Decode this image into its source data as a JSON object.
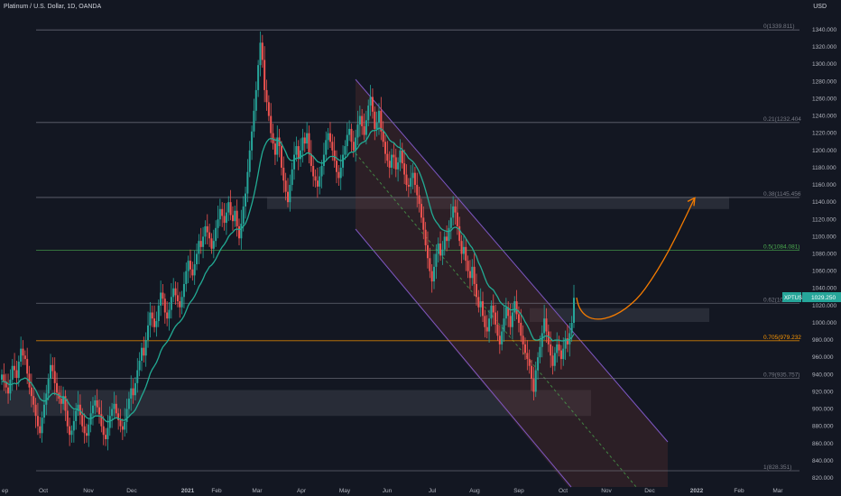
{
  "header": {
    "title": "Platinum / U.S. Dollar, 1D, OANDA"
  },
  "currency": {
    "label": "USD"
  },
  "chart_data": {
    "type": "candlestick",
    "symbol": "XPTUSD",
    "last_price": "1029.250",
    "ylim": [
      818,
      1355
    ],
    "y_ticks": [
      820,
      840,
      860,
      880,
      900,
      920,
      940,
      960,
      980,
      1000,
      1020,
      1040,
      1060,
      1080,
      1100,
      1120,
      1140,
      1160,
      1180,
      1200,
      1220,
      1240,
      1260,
      1280,
      1300,
      1320,
      1340
    ],
    "y_tick_labels": [
      "820.000",
      "840.000",
      "860.000",
      "880.000",
      "900.000",
      "920.000",
      "940.000",
      "960.000",
      "980.000",
      "1000.000",
      "1020.000",
      "1040.000",
      "1060.000",
      "1080.000",
      "1100.000",
      "1120.000",
      "1140.000",
      "1160.000",
      "1180.000",
      "1200.000",
      "1220.000",
      "1240.000",
      "1260.000",
      "1280.000",
      "1300.000",
      "1320.000",
      "1340.000"
    ],
    "x_labels": [
      "ep",
      "Oct",
      "Nov",
      "Dec",
      "2021",
      "Feb",
      "Mar",
      "Apr",
      "May",
      "Jun",
      "Jul",
      "Aug",
      "Sep",
      "Oct",
      "Nov",
      "Dec",
      "2022",
      "Feb",
      "Mar"
    ],
    "fib_levels": [
      {
        "label": "0(1339.811)",
        "value": 1339.811,
        "color": "#787b86"
      },
      {
        "label": "0.21(1232.404)",
        "value": 1232.404,
        "color": "#787b86"
      },
      {
        "label": "0.38(1145.456)",
        "value": 1145.456,
        "color": "#787b86"
      },
      {
        "label": "0.5(1084.081)",
        "value": 1084.081,
        "color": "#4caf50"
      },
      {
        "label": "0.62(10",
        "value": 1022.7,
        "color": "#787b86"
      },
      {
        "label": "0.705(979.232)",
        "value": 979.232,
        "color": "#ff9800"
      },
      {
        "label": "0.79(935.757)",
        "value": 935.757,
        "color": "#787b86"
      },
      {
        "label": "1(828.351)",
        "value": 828.351,
        "color": "#787b86"
      }
    ],
    "candles_close": [
      940,
      932,
      925,
      918,
      934,
      950,
      945,
      936,
      955,
      970,
      962,
      958,
      941,
      925,
      915,
      905,
      892,
      880,
      872,
      890,
      905,
      918,
      935,
      951,
      944,
      930,
      919,
      912,
      906,
      915,
      898,
      880,
      870,
      875,
      886,
      898,
      905,
      893,
      880,
      872,
      869,
      882,
      895,
      904,
      910,
      902,
      894,
      880,
      870,
      865,
      878,
      892,
      900,
      906,
      895,
      887,
      880,
      876,
      885,
      900,
      912,
      924,
      916,
      930,
      945,
      956,
      971,
      962,
      980,
      997,
      1012,
      1005,
      995,
      1002,
      1020,
      1035,
      1028,
      1012,
      1005,
      1015,
      1030,
      1040,
      1032,
      1025,
      1018,
      1030,
      1045,
      1060,
      1072,
      1062,
      1055,
      1068,
      1080,
      1095,
      1088,
      1100,
      1112,
      1105,
      1098,
      1086,
      1095,
      1110,
      1120,
      1132,
      1124,
      1116,
      1128,
      1140,
      1125,
      1118,
      1130,
      1112,
      1098,
      1115,
      1135,
      1150,
      1175,
      1200,
      1222,
      1246,
      1270,
      1299,
      1325,
      1305,
      1270,
      1256,
      1240,
      1220,
      1208,
      1195,
      1215,
      1205,
      1180,
      1165,
      1152,
      1140,
      1160,
      1178,
      1195,
      1205,
      1190,
      1200,
      1215,
      1208,
      1220,
      1196,
      1182,
      1170,
      1165,
      1158,
      1170,
      1182,
      1195,
      1212,
      1220,
      1210,
      1200,
      1188,
      1175,
      1168,
      1180,
      1195,
      1205,
      1218,
      1225,
      1210,
      1200,
      1215,
      1230,
      1240,
      1228,
      1218,
      1235,
      1252,
      1262,
      1245,
      1225,
      1232,
      1246,
      1222,
      1210,
      1196,
      1188,
      1180,
      1195,
      1192,
      1178,
      1186,
      1200,
      1185,
      1172,
      1160,
      1158,
      1168,
      1174,
      1160,
      1148,
      1138,
      1122,
      1108,
      1090,
      1075,
      1060,
      1048,
      1065,
      1080,
      1092,
      1078,
      1085,
      1100,
      1095,
      1110,
      1122,
      1135,
      1128,
      1112,
      1095,
      1080,
      1088,
      1072,
      1060,
      1052,
      1065,
      1045,
      1030,
      1018,
      1025,
      1008,
      995,
      990,
      1005,
      1020,
      1012,
      998,
      985,
      975,
      990,
      1005,
      1018,
      1008,
      995,
      1012,
      1025,
      1010,
      1000,
      985,
      975,
      965,
      958,
      950,
      935,
      920,
      945,
      960,
      972,
      988,
      1005,
      990,
      975,
      962,
      950,
      965,
      975,
      968,
      958,
      970,
      982,
      975,
      988,
      1000,
      1029
    ],
    "ema_values": [
      932,
      932,
      931,
      929,
      928,
      929,
      930,
      929,
      931,
      934,
      935,
      936,
      935,
      932,
      930,
      926,
      922,
      917,
      912,
      910,
      909,
      910,
      913,
      916,
      918,
      918,
      917,
      916,
      914,
      914,
      912,
      909,
      905,
      902,
      900,
      900,
      899,
      898,
      895,
      893,
      890,
      889,
      889,
      890,
      892,
      892,
      892,
      891,
      889,
      886,
      885,
      886,
      887,
      889,
      890,
      889,
      888,
      887,
      887,
      889,
      891,
      894,
      896,
      899,
      904,
      909,
      915,
      920,
      926,
      933,
      941,
      946,
      950,
      954,
      960,
      967,
      972,
      975,
      978,
      982,
      987,
      992,
      996,
      999,
      1001,
      1004,
      1008,
      1014,
      1020,
      1024,
      1027,
      1031,
      1036,
      1042,
      1046,
      1051,
      1057,
      1061,
      1065,
      1067,
      1070,
      1074,
      1079,
      1084,
      1088,
      1091,
      1095,
      1100,
      1103,
      1105,
      1108,
      1109,
      1108,
      1109,
      1112,
      1115,
      1121,
      1129,
      1138,
      1148,
      1160,
      1173,
      1187,
      1198,
      1205,
      1210,
      1213,
      1214,
      1213,
      1212,
      1212,
      1211,
      1208,
      1203,
      1198,
      1192,
      1189,
      1188,
      1189,
      1191,
      1191,
      1192,
      1194,
      1195,
      1197,
      1197,
      1195,
      1193,
      1190,
      1187,
      1186,
      1185,
      1186,
      1188,
      1191,
      1193,
      1193,
      1193,
      1191,
      1189,
      1188,
      1189,
      1191,
      1193,
      1197,
      1198,
      1198,
      1200,
      1203,
      1207,
      1209,
      1210,
      1212,
      1216,
      1221,
      1223,
      1223,
      1224,
      1226,
      1225,
      1223,
      1220,
      1216,
      1212,
      1210,
      1209,
      1206,
      1204,
      1203,
      1201,
      1198,
      1195,
      1191,
      1189,
      1187,
      1184,
      1180,
      1175,
      1169,
      1162,
      1154,
      1145,
      1136,
      1127,
      1121,
      1117,
      1114,
      1110,
      1108,
      1107,
      1106,
      1106,
      1107,
      1110,
      1111,
      1110,
      1108,
      1104,
      1102,
      1098,
      1094,
      1090,
      1087,
      1082,
      1077,
      1070,
      1065,
      1059,
      1052,
      1046,
      1042,
      1040,
      1038,
      1034,
      1030,
      1025,
      1022,
      1020,
      1019,
      1017,
      1015,
      1015,
      1016,
      1015,
      1013,
      1010,
      1006,
      1001,
      997,
      992,
      986,
      981,
      980,
      980,
      981,
      982,
      984,
      985,
      984,
      982,
      979,
      980,
      980,
      980,
      979,
      979,
      980,
      980,
      981,
      983,
      987
    ],
    "arrow_target": "1145",
    "zones": [
      {
        "name": "top-zone",
        "y1": 1132,
        "y2": 1146
      },
      {
        "name": "mid-zone",
        "y1": 1001,
        "y2": 1017
      },
      {
        "name": "bottom-zone",
        "y1": 892,
        "y2": 922
      }
    ],
    "colors": {
      "up": "#26a69a",
      "down": "#ef5350",
      "ema": "#22ab94",
      "channel": "#7e57c2",
      "arrow": "#f57c00",
      "bg": "#131722",
      "grid": "#2a2e39"
    }
  }
}
